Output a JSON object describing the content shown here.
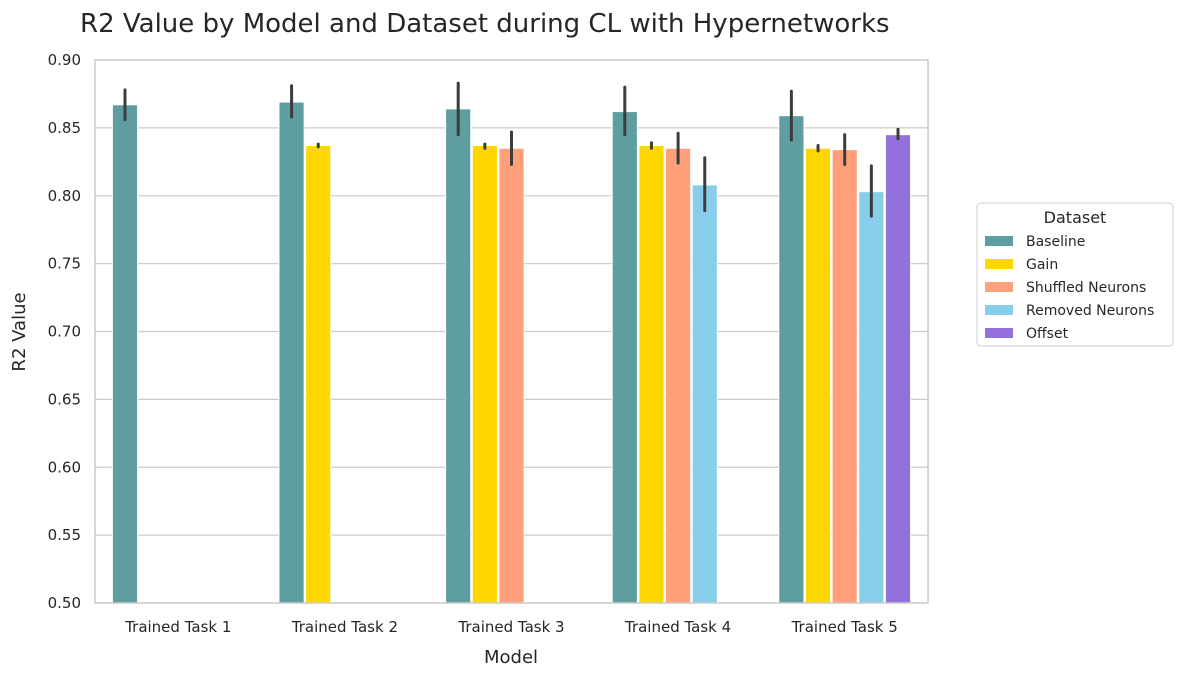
{
  "chart_data": {
    "type": "bar",
    "title": "R2 Value by Model and Dataset during CL with Hypernetworks",
    "xlabel": "Model",
    "ylabel": "R2 Value",
    "ylim": [
      0.5,
      0.9
    ],
    "yticks": [
      "0.50",
      "0.55",
      "0.60",
      "0.65",
      "0.70",
      "0.75",
      "0.80",
      "0.85",
      "0.90"
    ],
    "grid": "horizontal",
    "categories": [
      "Trained Task 1",
      "Trained Task 2",
      "Trained Task 3",
      "Trained Task 4",
      "Trained Task 5"
    ],
    "legend": {
      "title": "Dataset",
      "placement": "right"
    },
    "series": [
      {
        "name": "Baseline",
        "color": "#5f9ea0",
        "values": [
          0.867,
          0.869,
          0.864,
          0.862,
          0.859
        ],
        "ci": [
          [
            0.856,
            0.878
          ],
          [
            0.858,
            0.881
          ],
          [
            0.845,
            0.883
          ],
          [
            0.845,
            0.88
          ],
          [
            0.841,
            0.877
          ]
        ]
      },
      {
        "name": "Gain",
        "color": "#ffd700",
        "values": [
          null,
          0.837,
          0.837,
          0.837,
          0.835
        ],
        "ci": [
          null,
          [
            0.836,
            0.838
          ],
          [
            0.835,
            0.838
          ],
          [
            0.835,
            0.839
          ],
          [
            0.833,
            0.837
          ]
        ]
      },
      {
        "name": "Shuffled Neurons",
        "color": "#ffa07a",
        "values": [
          null,
          null,
          0.835,
          0.835,
          0.834
        ],
        "ci": [
          null,
          null,
          [
            0.823,
            0.847
          ],
          [
            0.824,
            0.846
          ],
          [
            0.823,
            0.845
          ]
        ]
      },
      {
        "name": "Removed Neurons",
        "color": "#87ceeb",
        "values": [
          null,
          null,
          null,
          0.808,
          0.803
        ],
        "ci": [
          null,
          null,
          null,
          [
            0.789,
            0.828
          ],
          [
            0.785,
            0.822
          ]
        ]
      },
      {
        "name": "Offset",
        "color": "#9370db",
        "values": [
          null,
          null,
          null,
          null,
          0.845
        ],
        "ci": [
          null,
          null,
          null,
          null,
          [
            0.842,
            0.849
          ]
        ]
      }
    ]
  }
}
